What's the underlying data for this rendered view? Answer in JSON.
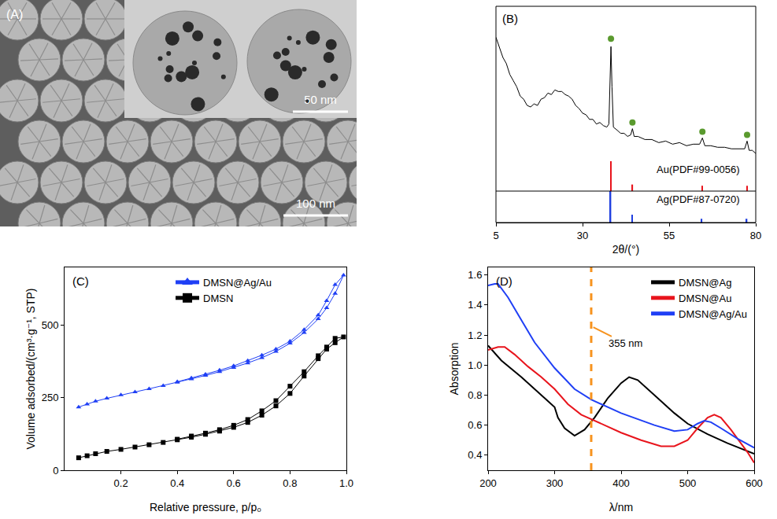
{
  "image_panel": {
    "label": "(A)",
    "scale_bars": [
      "50 nm",
      "100 nm"
    ]
  },
  "chart_data": [
    {
      "type": "line",
      "panel_label": "(B)",
      "x_label": "2θ/(°)",
      "x": [
        5,
        6,
        7,
        8,
        9,
        10,
        11,
        12,
        13,
        14,
        15,
        16,
        17,
        18,
        19,
        20,
        21,
        22,
        23,
        24,
        25,
        26,
        27,
        28,
        29,
        30,
        31,
        32,
        33,
        34,
        35,
        36,
        37,
        37.6,
        38.0,
        38.2,
        38.5,
        38.9,
        40,
        41,
        42,
        43,
        43.9,
        44.4,
        44.9,
        46,
        48,
        50,
        52,
        54,
        56,
        58,
        60,
        62,
        63.8,
        64.6,
        65.3,
        67,
        69,
        71,
        73,
        75,
        76.8,
        77.5,
        78.1,
        79,
        80
      ],
      "values": [
        80,
        74,
        67,
        63,
        56,
        52,
        48,
        42,
        40,
        36,
        35,
        37,
        36,
        40,
        41,
        44,
        43,
        46,
        45,
        45,
        43,
        42,
        40,
        36,
        34,
        31,
        30,
        27,
        27,
        24,
        25,
        23,
        22,
        24,
        50,
        74,
        48,
        22,
        20,
        18,
        18,
        16,
        17,
        21,
        16,
        16,
        14,
        14,
        12,
        13,
        11,
        12,
        10,
        11,
        11,
        15,
        10,
        10,
        9,
        9,
        8,
        8,
        8,
        13,
        7,
        7,
        5
      ],
      "color": "#000000",
      "xlim": [
        5,
        80
      ],
      "xticks": [
        5,
        30,
        55,
        80
      ],
      "ylim": [
        0,
        100
      ],
      "tick_labels": "x",
      "grid": false,
      "peaks": {
        "x": [
          38.2,
          44.4,
          64.6,
          77.5
        ],
        "values": [
          79,
          25,
          19,
          17
        ],
        "color": "#5a9a2e",
        "marker": "circle"
      },
      "references": [
        {
          "name": "Au(PDF#99-0056)",
          "color": "#e8141c",
          "x": [
            38.2,
            44.4,
            64.6,
            77.5
          ],
          "values": [
            100,
            22,
            18,
            18
          ]
        },
        {
          "name": "Ag(PDF#87-0720)",
          "color": "#1f3fe0",
          "x": [
            38.1,
            44.3,
            64.4,
            77.4
          ],
          "values": [
            100,
            25,
            12,
            12
          ]
        }
      ],
      "reference_ylim": [
        0,
        100
      ]
    },
    {
      "type": "line",
      "panel_label": "(C)",
      "x_label": "Relative pressure, p/p₀",
      "y_label": "Volume adsorbed/(cm³·g⁻¹, STP)",
      "xlim": [
        0,
        1.0
      ],
      "xticks": [
        0.2,
        0.4,
        0.6,
        0.8,
        {
          "value": 1.0,
          "label": "1.0"
        }
      ],
      "ylim": [
        0,
        700
      ],
      "yticks": [
        0,
        250,
        500
      ],
      "legend": "upper left",
      "grid": false,
      "series": [
        {
          "name": "DMSN@Ag/Au",
          "color": "#1f3ff5",
          "marker": "triangle-up",
          "x": [
            0.05,
            0.08,
            0.11,
            0.15,
            0.2,
            0.25,
            0.3,
            0.35,
            0.4,
            0.45,
            0.5,
            0.55,
            0.6,
            0.65,
            0.7,
            0.75,
            0.8,
            0.85,
            0.9,
            0.93,
            0.96,
            0.99,
            0.96,
            0.93,
            0.9,
            0.85,
            0.8,
            0.75,
            0.7,
            0.65,
            0.6,
            0.55,
            0.5,
            0.45,
            0.4
          ],
          "values": [
            218,
            228,
            238,
            248,
            260,
            270,
            281,
            292,
            303,
            315,
            327,
            340,
            354,
            370,
            388,
            410,
            438,
            475,
            522,
            560,
            610,
            673,
            640,
            585,
            535,
            485,
            445,
            418,
            397,
            378,
            360,
            345,
            331,
            318,
            305
          ]
        },
        {
          "name": "DMSN",
          "color": "#000000",
          "marker": "square",
          "x": [
            0.05,
            0.08,
            0.11,
            0.15,
            0.2,
            0.25,
            0.3,
            0.35,
            0.4,
            0.45,
            0.5,
            0.55,
            0.6,
            0.65,
            0.7,
            0.75,
            0.8,
            0.85,
            0.9,
            0.93,
            0.96,
            0.99,
            0.96,
            0.93,
            0.9,
            0.85,
            0.8,
            0.75,
            0.7,
            0.65,
            0.6,
            0.55,
            0.5,
            0.45,
            0.4
          ],
          "values": [
            43,
            50,
            57,
            65,
            72,
            80,
            88,
            96,
            105,
            114,
            124,
            135,
            148,
            165,
            190,
            222,
            265,
            325,
            385,
            418,
            440,
            460,
            455,
            425,
            395,
            340,
            290,
            240,
            205,
            175,
            155,
            140,
            128,
            118,
            107
          ]
        }
      ]
    },
    {
      "type": "line",
      "panel_label": "(D)",
      "x_label": "λ/nm",
      "y_label": "Absorption",
      "xlim": [
        200,
        600
      ],
      "xticks": [
        200,
        300,
        400,
        500,
        600
      ],
      "ylim": [
        0.3,
        1.65
      ],
      "yticks": [
        0.4,
        0.6,
        0.8,
        {
          "value": 1.0,
          "label": "1.0"
        },
        1.2,
        1.4,
        1.6
      ],
      "legend": "upper right",
      "grid": false,
      "series": [
        {
          "name": "DMSN@Ag",
          "color": "#000000",
          "x": [
            200,
            220,
            250,
            280,
            300,
            305,
            315,
            330,
            345,
            360,
            380,
            400,
            412,
            425,
            450,
            480,
            500,
            530,
            560,
            600
          ],
          "values": [
            1.13,
            1.03,
            0.92,
            0.8,
            0.72,
            0.65,
            0.58,
            0.53,
            0.57,
            0.65,
            0.78,
            0.88,
            0.92,
            0.9,
            0.8,
            0.68,
            0.61,
            0.54,
            0.48,
            0.41
          ]
        },
        {
          "name": "DMSN@Au",
          "color": "#e8141c",
          "x": [
            200,
            215,
            225,
            240,
            260,
            280,
            300,
            320,
            340,
            355,
            370,
            400,
            430,
            460,
            480,
            500,
            515,
            530,
            540,
            550,
            565,
            580,
            590,
            600
          ],
          "values": [
            1.1,
            1.12,
            1.12,
            1.07,
            0.99,
            0.92,
            0.84,
            0.74,
            0.67,
            0.64,
            0.61,
            0.55,
            0.5,
            0.46,
            0.46,
            0.5,
            0.58,
            0.65,
            0.67,
            0.65,
            0.57,
            0.48,
            0.42,
            0.35
          ]
        },
        {
          "name": "DMSN@Ag/Au",
          "color": "#1f3ff5",
          "x": [
            200,
            210,
            215,
            230,
            250,
            270,
            300,
            330,
            355,
            400,
            450,
            480,
            500,
            515,
            525,
            535,
            550,
            575,
            600
          ],
          "values": [
            1.53,
            1.54,
            1.54,
            1.45,
            1.3,
            1.15,
            0.98,
            0.84,
            0.77,
            0.68,
            0.6,
            0.56,
            0.57,
            0.61,
            0.63,
            0.62,
            0.58,
            0.51,
            0.45
          ]
        }
      ],
      "reference_line": {
        "x": 355,
        "label": "355 nm",
        "color": "#f7931e",
        "line_style": "dash"
      }
    }
  ]
}
